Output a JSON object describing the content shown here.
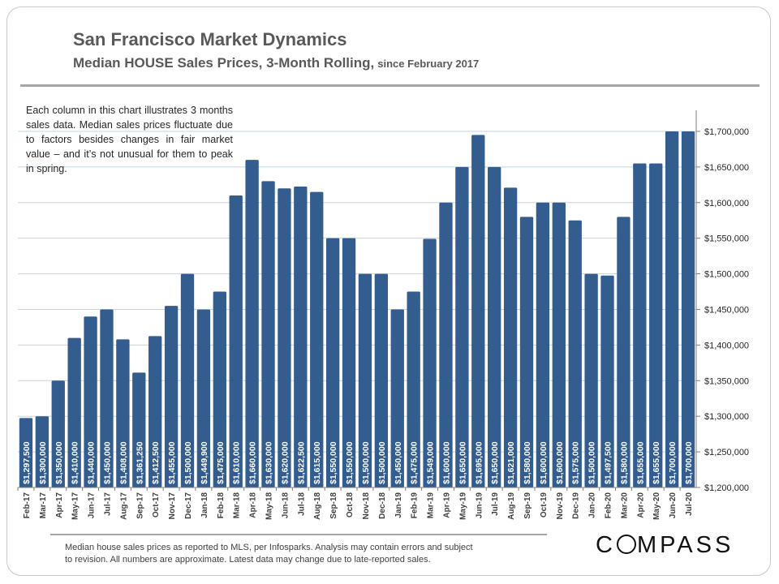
{
  "header": {
    "title": "San Francisco Market Dynamics",
    "subtitle": "Median HOUSE Sales Prices, 3-Month Rolling,",
    "subtitle_since": "since February 2017"
  },
  "annotation": "Each column in this chart illustrates 3 months sales data. Median sales prices fluctuate due to factors besides changes in fair market value – and it’s not unusual for them to peak in spring.",
  "footnote": {
    "line1": "Median house sales prices as reported to MLS, per Infosparks.  Analysis may contain errors and subject",
    "line2": "to revision. All numbers are approximate. Latest data may change due to late-reported sales."
  },
  "logo": {
    "pre": "C",
    "post": "MPASS",
    "full": "COMPASS"
  },
  "colors": {
    "bar": "#335c8f",
    "grid": "#bdd7e7",
    "axis": "#7f7f7f",
    "label": "#ffffff"
  },
  "chart_data": {
    "type": "bar",
    "title": "Median HOUSE Sales Prices, 3-Month Rolling",
    "xlabel": "",
    "ylabel": "",
    "ylim": [
      1200000,
      1725000
    ],
    "yticks": [
      1200000,
      1250000,
      1300000,
      1350000,
      1400000,
      1450000,
      1500000,
      1550000,
      1600000,
      1650000,
      1700000
    ],
    "ytick_labels": [
      "$1,200,000",
      "$1,250,000",
      "$1,300,000",
      "$1,350,000",
      "$1,400,000",
      "$1,450,000",
      "$1,500,000",
      "$1,550,000",
      "$1,600,000",
      "$1,650,000",
      "$1,700,000"
    ],
    "grid": true,
    "categories": [
      "Feb-17",
      "Mar-17",
      "Apr-17",
      "May-17",
      "Jun-17",
      "Jul-17",
      "Aug-17",
      "Sep-17",
      "Oct-17",
      "Nov-17",
      "Dec-17",
      "Jan-18",
      "Feb-18",
      "Mar-18",
      "Apr-18",
      "May-18",
      "Jun-18",
      "Jul-18",
      "Aug-18",
      "Sep-18",
      "Oct-18",
      "Nov-18",
      "Dec-18",
      "Jan-19",
      "Feb-19",
      "Mar-19",
      "Apr-19",
      "May-19",
      "Jun-19",
      "Jul-19",
      "Aug-19",
      "Sep-19",
      "Oct-19",
      "Nov-19",
      "Dec-19",
      "Jan-20",
      "Feb-20",
      "Mar-20",
      "Apr-20",
      "May-20",
      "Jun-20",
      "Jul-20"
    ],
    "values": [
      1297500,
      1300000,
      1350000,
      1410000,
      1440000,
      1450000,
      1408000,
      1361250,
      1412500,
      1455000,
      1500000,
      1449900,
      1475000,
      1610000,
      1660000,
      1630000,
      1620000,
      1622500,
      1615000,
      1550000,
      1550000,
      1500000,
      1500000,
      1450000,
      1475000,
      1549000,
      1600000,
      1650000,
      1695000,
      1650000,
      1621000,
      1580000,
      1600000,
      1600000,
      1575000,
      1500000,
      1497500,
      1580000,
      1655000,
      1655000,
      1700000,
      1700000
    ],
    "data_labels": [
      "$1,297,500",
      "$1,300,000",
      "$1,350,000",
      "$1,410,000",
      "$1,440,000",
      "$1,450,000",
      "$1,408,000",
      "$1,361,250",
      "$1,412,500",
      "$1,455,000",
      "$1,500,000",
      "$1,449,900",
      "$1,475,000",
      "$1,610,000",
      "$1,660,000",
      "$1,630,000",
      "$1,620,000",
      "$1,622,500",
      "$1,615,000",
      "$1,550,000",
      "$1,550,000",
      "$1,500,000",
      "$1,500,000",
      "$1,450,000",
      "$1,475,000",
      "$1,549,000",
      "$1,600,000",
      "$1,650,000",
      "$1,695,000",
      "$1,650,000",
      "$1,621,000",
      "$1,580,000",
      "$1,600,000",
      "$1,600,000",
      "$1,575,000",
      "$1,500,000",
      "$1,497,500",
      "$1,580,000",
      "$1,655,000",
      "$1,655,000",
      "$1,700,000",
      "$1,700,000"
    ]
  }
}
